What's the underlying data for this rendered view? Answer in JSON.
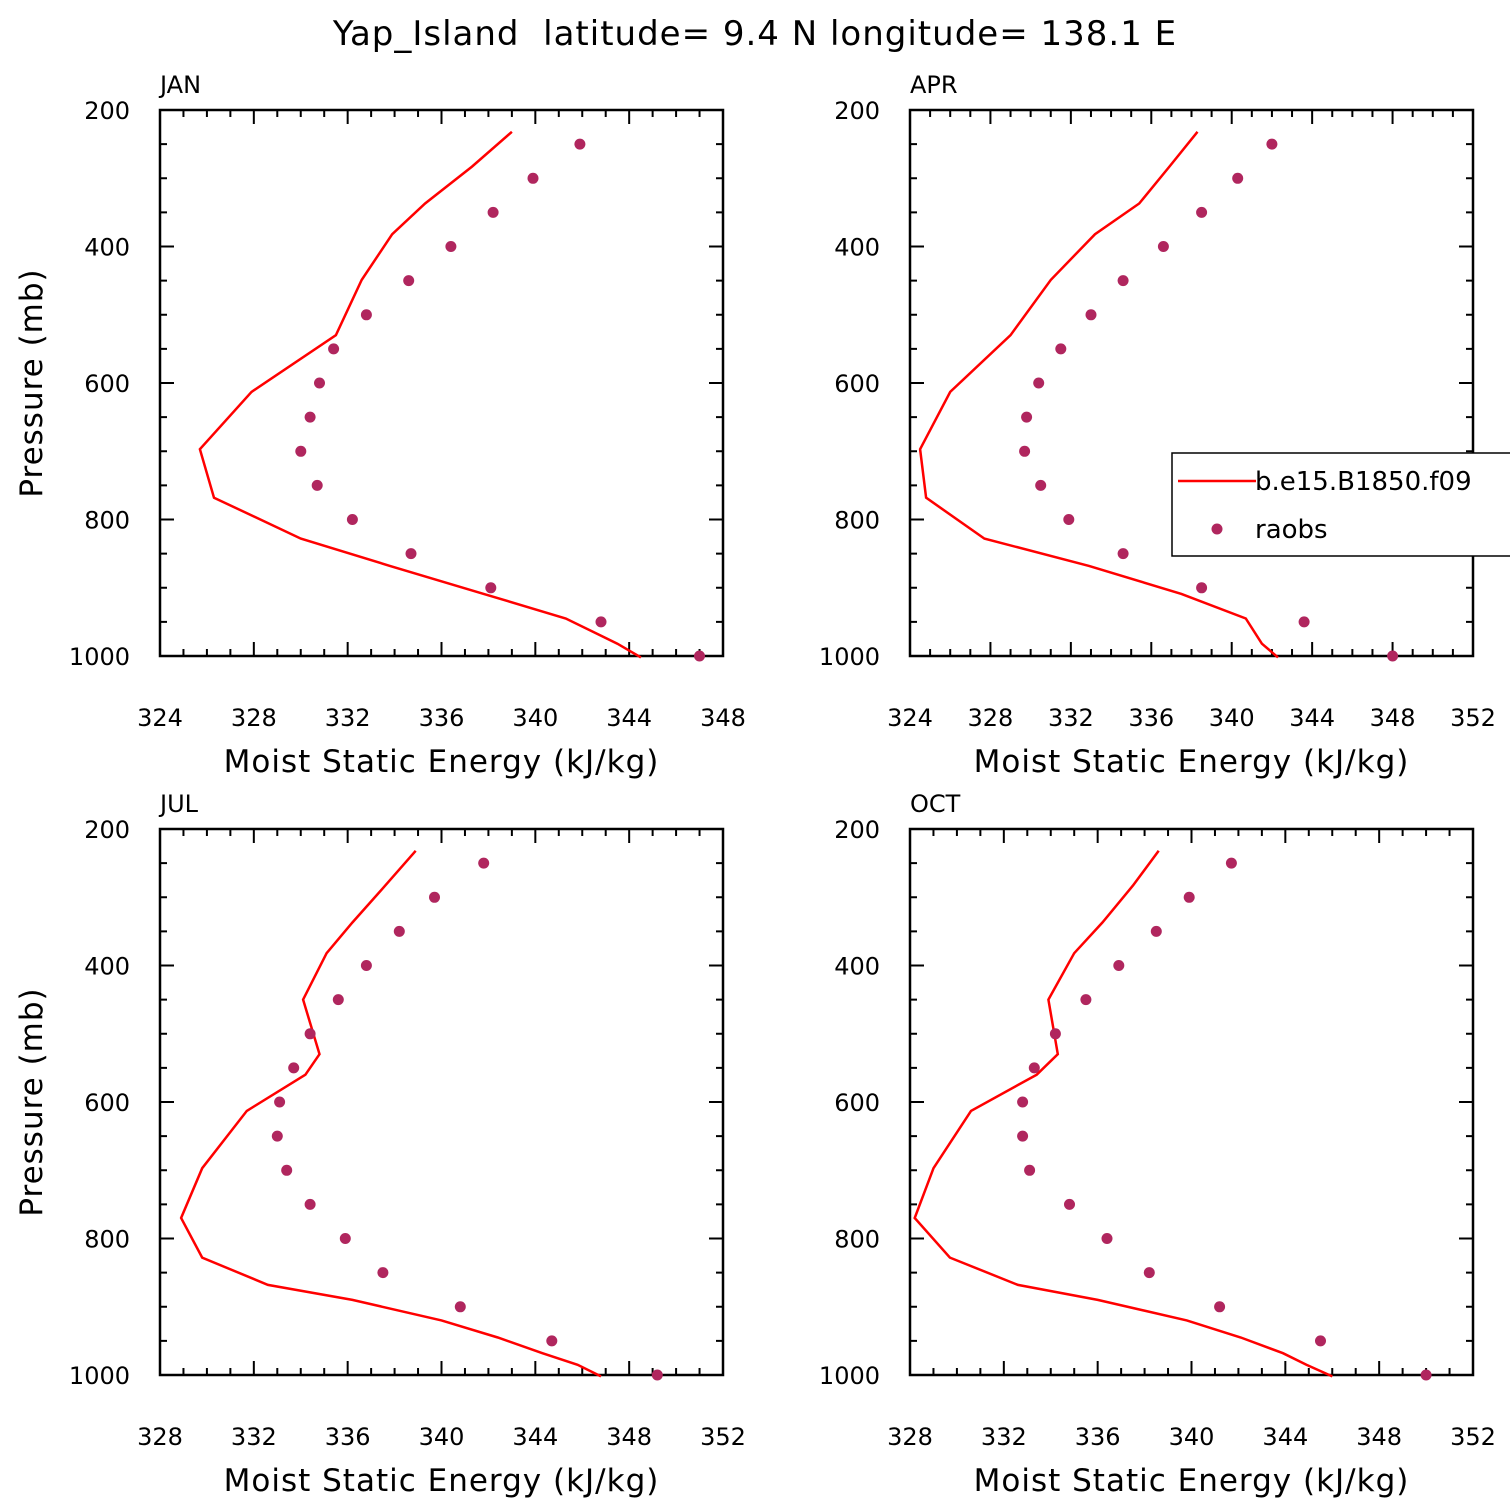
{
  "figure": {
    "title": "Yap_Island  latitude= 9.4 N longitude= 138.1 E",
    "colors": {
      "model": "#ff0000",
      "obs": "#b0265e",
      "axis": "#000000"
    }
  },
  "chart_data": [
    {
      "type": "line",
      "panel_label": "JAN",
      "xlabel": "Moist Static Energy (kJ/kg)",
      "ylabel": "Pressure (mb)",
      "xlim": [
        324,
        348
      ],
      "xticks": [
        324,
        328,
        332,
        336,
        340,
        344,
        348
      ],
      "ylim": [
        200,
        1000
      ],
      "y_inverted": true,
      "yticks": [
        200,
        400,
        600,
        800,
        1000
      ],
      "series": [
        {
          "name": "b.e15.B1850.f09",
          "kind": "line",
          "x": [
            339.0,
            337.3,
            335.3,
            333.9,
            332.6,
            331.5,
            327.9,
            325.7,
            326.3,
            330.0,
            333.8,
            337.8,
            341.3,
            343.5,
            344.5
          ],
          "y": [
            232,
            283,
            337,
            382,
            449,
            530,
            613,
            697,
            768,
            828,
            868,
            909,
            945,
            982,
            1002
          ]
        },
        {
          "name": "raobs",
          "kind": "scatter",
          "x": [
            341.9,
            339.9,
            338.2,
            336.4,
            334.6,
            332.8,
            331.4,
            330.8,
            330.4,
            330.0,
            330.7,
            332.2,
            334.7,
            338.1,
            342.8,
            347.0
          ],
          "y": [
            250,
            300,
            350,
            400,
            450,
            500,
            550,
            600,
            650,
            700,
            750,
            800,
            850,
            900,
            950,
            1000
          ]
        }
      ]
    },
    {
      "type": "line",
      "panel_label": "APR",
      "xlabel": "Moist Static Energy (kJ/kg)",
      "ylabel": "",
      "xlim": [
        324,
        352
      ],
      "xticks": [
        324,
        328,
        332,
        336,
        340,
        344,
        348,
        352
      ],
      "ylim": [
        200,
        1000
      ],
      "y_inverted": true,
      "yticks": [
        200,
        400,
        600,
        800,
        1000
      ],
      "legend": {
        "position": "right-middle",
        "entries": [
          "b.e15.B1850.f09",
          "raobs"
        ]
      },
      "series": [
        {
          "name": "b.e15.B1850.f09",
          "kind": "line",
          "x": [
            338.3,
            336.9,
            335.4,
            333.2,
            331.0,
            329.0,
            326.0,
            324.5,
            324.8,
            327.7,
            332.9,
            337.5,
            340.7,
            341.5,
            342.3
          ],
          "y": [
            232,
            283,
            337,
            382,
            449,
            530,
            613,
            697,
            768,
            828,
            868,
            909,
            945,
            982,
            1002
          ]
        },
        {
          "name": "raobs",
          "kind": "scatter",
          "x": [
            342.0,
            340.3,
            338.5,
            336.6,
            334.6,
            333.0,
            331.5,
            330.4,
            329.8,
            329.7,
            330.5,
            331.9,
            334.6,
            338.5,
            343.6,
            348.0
          ],
          "y": [
            250,
            300,
            350,
            400,
            450,
            500,
            550,
            600,
            650,
            700,
            750,
            800,
            850,
            900,
            950,
            1000
          ]
        }
      ]
    },
    {
      "type": "line",
      "panel_label": "JUL",
      "xlabel": "Moist Static Energy (kJ/kg)",
      "ylabel": "Pressure (mb)",
      "xlim": [
        328,
        352
      ],
      "xticks": [
        328,
        332,
        336,
        340,
        344,
        348,
        352
      ],
      "ylim": [
        200,
        1000
      ],
      "y_inverted": true,
      "yticks": [
        200,
        400,
        600,
        800,
        1000
      ],
      "series": [
        {
          "name": "b.e15.B1850.f09",
          "kind": "line",
          "x": [
            338.9,
            337.6,
            336.2,
            335.1,
            334.1,
            334.8,
            334.2,
            331.7,
            329.8,
            328.9,
            329.8,
            332.6,
            336.2,
            340.0,
            342.4,
            344.3,
            345.8,
            346.8
          ],
          "y": [
            232,
            283,
            337,
            382,
            450,
            530,
            560,
            613,
            697,
            770,
            828,
            868,
            890,
            920,
            945,
            968,
            985,
            1002
          ]
        },
        {
          "name": "raobs",
          "kind": "scatter",
          "x": [
            341.8,
            339.7,
            338.2,
            336.8,
            335.6,
            334.4,
            333.7,
            333.1,
            333.0,
            333.4,
            334.4,
            335.9,
            337.5,
            340.8,
            344.7,
            349.2
          ],
          "y": [
            250,
            300,
            350,
            400,
            450,
            500,
            550,
            600,
            650,
            700,
            750,
            800,
            850,
            900,
            950,
            1000
          ]
        }
      ]
    },
    {
      "type": "line",
      "panel_label": "OCT",
      "xlabel": "Moist Static Energy (kJ/kg)",
      "ylabel": "",
      "xlim": [
        328,
        352
      ],
      "xticks": [
        328,
        332,
        336,
        340,
        344,
        348,
        352
      ],
      "ylim": [
        200,
        1000
      ],
      "y_inverted": true,
      "yticks": [
        200,
        400,
        600,
        800,
        1000
      ],
      "series": [
        {
          "name": "b.e15.B1850.f09",
          "kind": "line",
          "x": [
            338.6,
            337.5,
            336.2,
            335.0,
            333.9,
            334.3,
            333.4,
            330.6,
            329.0,
            328.2,
            329.7,
            332.6,
            336.0,
            339.8,
            342.1,
            343.9,
            344.9,
            346.0
          ],
          "y": [
            232,
            283,
            337,
            382,
            450,
            530,
            560,
            613,
            697,
            770,
            828,
            868,
            890,
            920,
            945,
            968,
            985,
            1002
          ]
        },
        {
          "name": "raobs",
          "kind": "scatter",
          "x": [
            341.7,
            339.9,
            338.5,
            336.9,
            335.5,
            334.2,
            333.3,
            332.8,
            332.8,
            333.1,
            334.8,
            336.4,
            338.2,
            341.2,
            345.5,
            350.0
          ],
          "y": [
            250,
            300,
            350,
            400,
            450,
            500,
            550,
            600,
            650,
            700,
            750,
            800,
            850,
            900,
            950,
            1000
          ]
        }
      ]
    }
  ]
}
